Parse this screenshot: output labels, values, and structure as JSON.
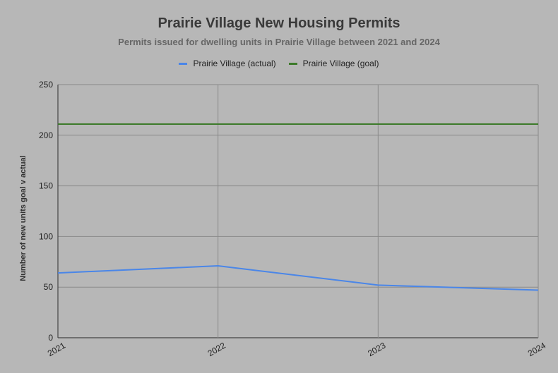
{
  "chart_data": {
    "type": "line",
    "title": "Prairie Village New Housing Permits",
    "subtitle": "Permits issued for dwelling units in Prairie Village between 2021 and 2024",
    "xlabel": "",
    "ylabel": "Number of new units goal v actual",
    "categories": [
      "2021",
      "2022",
      "2023",
      "2024"
    ],
    "yticks": [
      0,
      50,
      100,
      150,
      200,
      250
    ],
    "ylim": [
      0,
      250
    ],
    "grid": true,
    "legend_position": "top",
    "series": [
      {
        "name": "Prairie Village (actual)",
        "color": "#4a86e8",
        "values": [
          64,
          71,
          52,
          47
        ]
      },
      {
        "name": "Prairie Village (goal)",
        "color": "#3c7a2a",
        "values": [
          211,
          211,
          211,
          211
        ]
      }
    ]
  }
}
